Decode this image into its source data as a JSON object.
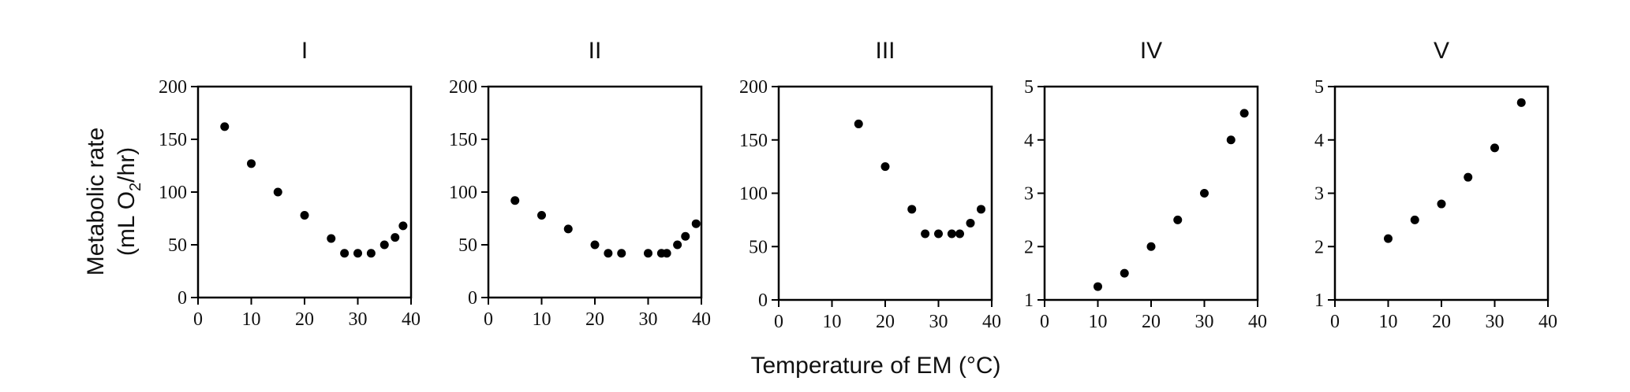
{
  "ylabel_line1": "Metabolic rate",
  "ylabel_line2_prefix": "(mL O",
  "ylabel_line2_sub": "2",
  "ylabel_line2_suffix": "/hr)",
  "xlabel": "Temperature of EM (°C)",
  "colors": {
    "marker": "#000000",
    "axis": "#000000"
  },
  "chart_data": [
    {
      "type": "scatter",
      "title": "I",
      "xlim": [
        0,
        40
      ],
      "ylim": [
        0,
        200
      ],
      "xticks": [
        0,
        10,
        20,
        30,
        40
      ],
      "yticks": [
        0,
        50,
        100,
        150,
        200
      ],
      "grid": false,
      "x": [
        5,
        10,
        15,
        20,
        25,
        27.5,
        30,
        32.5,
        35,
        37,
        38.5
      ],
      "y": [
        162,
        127,
        100,
        78,
        56,
        42,
        42,
        42,
        50,
        57,
        68
      ]
    },
    {
      "type": "scatter",
      "title": "II",
      "xlim": [
        0,
        40
      ],
      "ylim": [
        0,
        200
      ],
      "xticks": [
        0,
        10,
        20,
        30,
        40
      ],
      "yticks": [
        0,
        50,
        100,
        150,
        200
      ],
      "grid": false,
      "x": [
        5,
        10,
        15,
        20,
        22.5,
        25,
        30,
        32.5,
        33.5,
        35.5,
        37,
        39
      ],
      "y": [
        92,
        78,
        65,
        50,
        42,
        42,
        42,
        42,
        42,
        50,
        58,
        70
      ]
    },
    {
      "type": "scatter",
      "title": "III",
      "xlim": [
        0,
        40
      ],
      "ylim": [
        0,
        200
      ],
      "xticks": [
        0,
        10,
        20,
        30,
        40
      ],
      "yticks": [
        0,
        50,
        100,
        150,
        200
      ],
      "grid": false,
      "x": [
        15,
        20,
        25,
        27.5,
        30,
        32.5,
        34,
        36,
        38
      ],
      "y": [
        165,
        125,
        85,
        62,
        62,
        62,
        62,
        72,
        85
      ]
    },
    {
      "type": "scatter",
      "title": "IV",
      "xlim": [
        0,
        40
      ],
      "ylim": [
        1,
        5
      ],
      "xticks": [
        0,
        10,
        20,
        30,
        40
      ],
      "yticks": [
        1,
        2,
        3,
        4,
        5
      ],
      "grid": false,
      "x": [
        10,
        15,
        20,
        25,
        30,
        35,
        37.5
      ],
      "y": [
        1.25,
        1.5,
        2,
        2.5,
        3,
        4,
        4.5
      ]
    },
    {
      "type": "scatter",
      "title": "V",
      "xlim": [
        0,
        40
      ],
      "ylim": [
        1,
        5
      ],
      "xticks": [
        0,
        10,
        20,
        30,
        40
      ],
      "yticks": [
        1,
        2,
        3,
        4,
        5
      ],
      "grid": false,
      "x": [
        10,
        15,
        20,
        25,
        30,
        35
      ],
      "y": [
        2.15,
        2.5,
        2.8,
        3.3,
        3.85,
        4.7
      ]
    }
  ]
}
